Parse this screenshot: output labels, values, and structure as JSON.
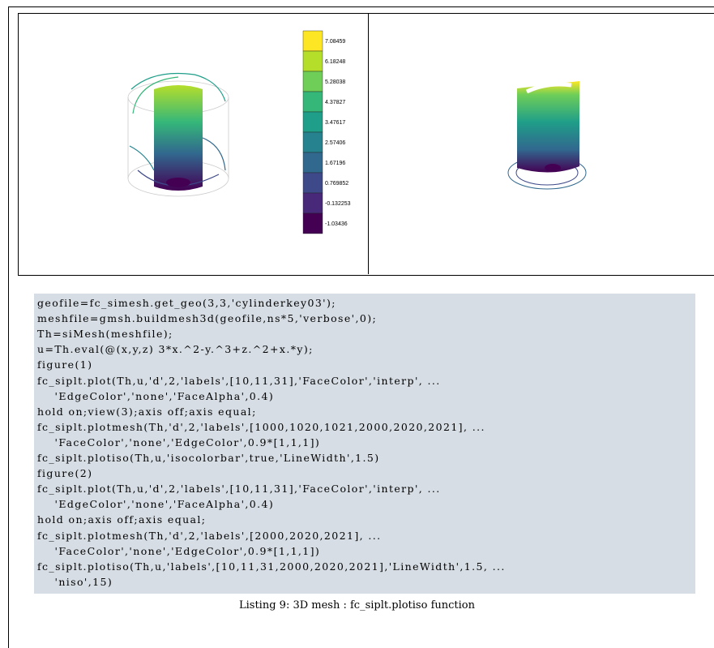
{
  "figure": {
    "colorbar": {
      "labels": [
        "7.08459",
        "6.18248",
        "5.28038",
        "4.37827",
        "3.47617",
        "2.57406",
        "1.67196",
        "0.769852",
        "-0.132253",
        "-1.03436"
      ],
      "colors": [
        "#fde725",
        "#b5de2b",
        "#6ece58",
        "#35b779",
        "#1f9e89",
        "#26828e",
        "#31688e",
        "#3e4989",
        "#482878",
        "#440154"
      ]
    }
  },
  "code_lines": [
    "geofile=fc_simesh.get_geo(3,3,'cylinderkey03');",
    "meshfile=gmsh.buildmesh3d(geofile,ns*5,'verbose',0);",
    "Th=siMesh(meshfile);",
    "u=Th.eval(@(x,y,z) 3*x.^2-y.^3+z.^2+x.*y);",
    "figure(1)",
    "fc_siplt.plot(Th,u,'d',2,'labels',[10,11,31],'FaceColor','interp', ...",
    "    'EdgeColor','none','FaceAlpha',0.4)",
    "hold on;view(3);axis off;axis equal;",
    "fc_siplt.plotmesh(Th,'d',2,'labels',[1000,1020,1021,2000,2020,2021], ...",
    "    'FaceColor','none','EdgeColor',0.9*[1,1,1])",
    "fc_siplt.plotiso(Th,u,'isocolorbar',true,'LineWidth',1.5)",
    "figure(2)",
    "fc_siplt.plot(Th,u,'d',2,'labels',[10,11,31],'FaceColor','interp', ...",
    "    'EdgeColor','none','FaceAlpha',0.4)",
    "hold on;axis off;axis equal;",
    "fc_siplt.plotmesh(Th,'d',2,'labels',[2000,2020,2021], ...",
    "    'FaceColor','none','EdgeColor',0.9*[1,1,1])",
    "fc_siplt.plotiso(Th,u,'labels',[10,11,31,2000,2020,2021],'LineWidth',1.5, ...",
    "    'niso',15)"
  ],
  "caption": "Listing 9: 3D mesh : fc_siplt.plotiso function"
}
